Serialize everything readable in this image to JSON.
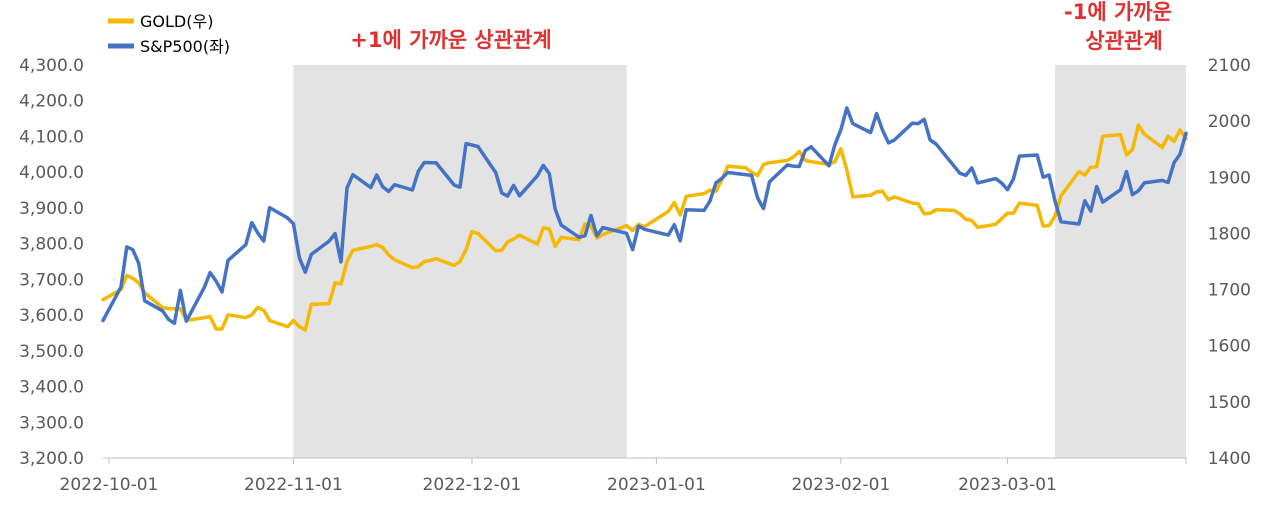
{
  "chart_data": {
    "type": "line",
    "x_ticks": [
      "2022-10-01",
      "2022-11-01",
      "2022-12-01",
      "2023-01-01",
      "2023-02-01",
      "2023-03-01"
    ],
    "y_left": {
      "ticks": [
        "4,300.0",
        "4,200.0",
        "4,100.0",
        "4,000.0",
        "3,900.0",
        "3,800.0",
        "3,700.0",
        "3,600.0",
        "3,500.0",
        "3,400.0",
        "3,300.0",
        "3,200.0"
      ],
      "range": [
        3200,
        4300
      ]
    },
    "y_right": {
      "ticks": [
        "2100",
        "2000",
        "1900",
        "1800",
        "1700",
        "1600",
        "1500",
        "1400"
      ],
      "range": [
        1400,
        2100
      ]
    },
    "legend": {
      "placement": "top-left"
    },
    "annotations": [
      {
        "text": "+1에 가까운 상관관계",
        "lines": [
          "+1에 가까운 상관관계"
        ],
        "shaded": [
          "2022-11-01",
          "2022-12-27"
        ]
      },
      {
        "text": "-1에 가까운 상관관계",
        "lines": [
          "-1에 가까운",
          "상관관계"
        ],
        "shaded": [
          "2023-03-09",
          "2023-03-31"
        ]
      }
    ],
    "series": [
      {
        "name": "GOLD(우)",
        "axis": "right",
        "color": "#f5b800",
        "points": [
          [
            "2022-09-30",
            1682
          ],
          [
            "2022-10-03",
            1700
          ],
          [
            "2022-10-04",
            1725
          ],
          [
            "2022-10-05",
            1720
          ],
          [
            "2022-10-06",
            1712
          ],
          [
            "2022-10-07",
            1694
          ],
          [
            "2022-10-10",
            1668
          ],
          [
            "2022-10-11",
            1666
          ],
          [
            "2022-10-12",
            1666
          ],
          [
            "2022-10-13",
            1666
          ],
          [
            "2022-10-14",
            1645
          ],
          [
            "2022-10-17",
            1650
          ],
          [
            "2022-10-18",
            1652
          ],
          [
            "2022-10-19",
            1630
          ],
          [
            "2022-10-20",
            1630
          ],
          [
            "2022-10-21",
            1655
          ],
          [
            "2022-10-24",
            1650
          ],
          [
            "2022-10-25",
            1655
          ],
          [
            "2022-10-26",
            1668
          ],
          [
            "2022-10-27",
            1663
          ],
          [
            "2022-10-28",
            1645
          ],
          [
            "2022-10-31",
            1634
          ],
          [
            "2022-11-01",
            1645
          ],
          [
            "2022-11-02",
            1634
          ],
          [
            "2022-11-03",
            1628
          ],
          [
            "2022-11-04",
            1674
          ],
          [
            "2022-11-07",
            1675
          ],
          [
            "2022-11-08",
            1712
          ],
          [
            "2022-11-09",
            1710
          ],
          [
            "2022-11-10",
            1750
          ],
          [
            "2022-11-11",
            1770
          ],
          [
            "2022-11-14",
            1777
          ],
          [
            "2022-11-15",
            1780
          ],
          [
            "2022-11-16",
            1775
          ],
          [
            "2022-11-17",
            1762
          ],
          [
            "2022-11-18",
            1753
          ],
          [
            "2022-11-21",
            1739
          ],
          [
            "2022-11-22",
            1741
          ],
          [
            "2022-11-23",
            1750
          ],
          [
            "2022-11-24",
            1752
          ],
          [
            "2022-11-25",
            1755
          ],
          [
            "2022-11-28",
            1743
          ],
          [
            "2022-11-29",
            1750
          ],
          [
            "2022-11-30",
            1771
          ],
          [
            "2022-12-01",
            1803
          ],
          [
            "2022-12-02",
            1800
          ],
          [
            "2022-12-05",
            1769
          ],
          [
            "2022-12-06",
            1770
          ],
          [
            "2022-12-07",
            1785
          ],
          [
            "2022-12-08",
            1790
          ],
          [
            "2022-12-09",
            1797
          ],
          [
            "2022-12-12",
            1781
          ],
          [
            "2022-12-13",
            1810
          ],
          [
            "2022-12-14",
            1808
          ],
          [
            "2022-12-15",
            1777
          ],
          [
            "2022-12-16",
            1793
          ],
          [
            "2022-12-19",
            1789
          ],
          [
            "2022-12-20",
            1817
          ],
          [
            "2022-12-21",
            1814
          ],
          [
            "2022-12-22",
            1792
          ],
          [
            "2022-12-23",
            1798
          ],
          [
            "2022-12-27",
            1814
          ],
          [
            "2022-12-28",
            1805
          ],
          [
            "2022-12-29",
            1816
          ],
          [
            "2022-12-30",
            1812
          ],
          [
            "2023-01-03",
            1839
          ],
          [
            "2023-01-04",
            1855
          ],
          [
            "2023-01-05",
            1833
          ],
          [
            "2023-01-06",
            1866
          ],
          [
            "2023-01-09",
            1871
          ],
          [
            "2023-01-10",
            1877
          ],
          [
            "2023-01-11",
            1875
          ],
          [
            "2023-01-12",
            1896
          ],
          [
            "2023-01-13",
            1920
          ],
          [
            "2023-01-16",
            1917
          ],
          [
            "2023-01-17",
            1909
          ],
          [
            "2023-01-18",
            1903
          ],
          [
            "2023-01-19",
            1923
          ],
          [
            "2023-01-20",
            1926
          ],
          [
            "2023-01-23",
            1930
          ],
          [
            "2023-01-24",
            1936
          ],
          [
            "2023-01-25",
            1946
          ],
          [
            "2023-01-26",
            1930
          ],
          [
            "2023-01-27",
            1928
          ],
          [
            "2023-01-30",
            1923
          ],
          [
            "2023-01-31",
            1928
          ],
          [
            "2023-02-01",
            1951
          ],
          [
            "2023-02-02",
            1913
          ],
          [
            "2023-02-03",
            1865
          ],
          [
            "2023-02-06",
            1868
          ],
          [
            "2023-02-07",
            1874
          ],
          [
            "2023-02-08",
            1875
          ],
          [
            "2023-02-09",
            1860
          ],
          [
            "2023-02-10",
            1865
          ],
          [
            "2023-02-13",
            1854
          ],
          [
            "2023-02-14",
            1853
          ],
          [
            "2023-02-15",
            1835
          ],
          [
            "2023-02-16",
            1836
          ],
          [
            "2023-02-17",
            1842
          ],
          [
            "2023-02-20",
            1841
          ],
          [
            "2023-02-21",
            1835
          ],
          [
            "2023-02-22",
            1825
          ],
          [
            "2023-02-23",
            1823
          ],
          [
            "2023-02-24",
            1811
          ],
          [
            "2023-02-27",
            1816
          ],
          [
            "2023-02-28",
            1826
          ],
          [
            "2023-03-01",
            1836
          ],
          [
            "2023-03-02",
            1836
          ],
          [
            "2023-03-03",
            1854
          ],
          [
            "2023-03-06",
            1850
          ],
          [
            "2023-03-07",
            1813
          ],
          [
            "2023-03-08",
            1814
          ],
          [
            "2023-03-09",
            1831
          ],
          [
            "2023-03-10",
            1867
          ],
          [
            "2023-03-13",
            1910
          ],
          [
            "2023-03-14",
            1904
          ],
          [
            "2023-03-15",
            1918
          ],
          [
            "2023-03-16",
            1919
          ],
          [
            "2023-03-17",
            1973
          ],
          [
            "2023-03-20",
            1976
          ],
          [
            "2023-03-21",
            1940
          ],
          [
            "2023-03-22",
            1949
          ],
          [
            "2023-03-23",
            1993
          ],
          [
            "2023-03-24",
            1977
          ],
          [
            "2023-03-27",
            1953
          ],
          [
            "2023-03-28",
            1973
          ],
          [
            "2023-03-29",
            1964
          ],
          [
            "2023-03-30",
            1984
          ],
          [
            "2023-03-31",
            1969
          ]
        ]
      },
      {
        "name": "S&P500(좌)",
        "axis": "left",
        "color": "#4472c4",
        "points": [
          [
            "2022-09-30",
            3585
          ],
          [
            "2022-10-03",
            3678
          ],
          [
            "2022-10-04",
            3791
          ],
          [
            "2022-10-05",
            3783
          ],
          [
            "2022-10-06",
            3745
          ],
          [
            "2022-10-07",
            3640
          ],
          [
            "2022-10-10",
            3612
          ],
          [
            "2022-10-11",
            3588
          ],
          [
            "2022-10-12",
            3577
          ],
          [
            "2022-10-13",
            3669
          ],
          [
            "2022-10-14",
            3583
          ],
          [
            "2022-10-17",
            3677
          ],
          [
            "2022-10-18",
            3719
          ],
          [
            "2022-10-19",
            3695
          ],
          [
            "2022-10-20",
            3665
          ],
          [
            "2022-10-21",
            3753
          ],
          [
            "2022-10-24",
            3797
          ],
          [
            "2022-10-25",
            3859
          ],
          [
            "2022-10-26",
            3830
          ],
          [
            "2022-10-27",
            3807
          ],
          [
            "2022-10-28",
            3901
          ],
          [
            "2022-10-31",
            3872
          ],
          [
            "2022-11-01",
            3856
          ],
          [
            "2022-11-02",
            3760
          ],
          [
            "2022-11-03",
            3720
          ],
          [
            "2022-11-04",
            3770
          ],
          [
            "2022-11-07",
            3807
          ],
          [
            "2022-11-08",
            3828
          ],
          [
            "2022-11-09",
            3749
          ],
          [
            "2022-11-10",
            3956
          ],
          [
            "2022-11-11",
            3993
          ],
          [
            "2022-11-14",
            3957
          ],
          [
            "2022-11-15",
            3992
          ],
          [
            "2022-11-16",
            3959
          ],
          [
            "2022-11-17",
            3946
          ],
          [
            "2022-11-18",
            3965
          ],
          [
            "2022-11-21",
            3950
          ],
          [
            "2022-11-22",
            4003
          ],
          [
            "2022-11-23",
            4027
          ],
          [
            "2022-11-25",
            4026
          ],
          [
            "2022-11-28",
            3964
          ],
          [
            "2022-11-29",
            3958
          ],
          [
            "2022-11-30",
            4080
          ],
          [
            "2022-12-01",
            4076
          ],
          [
            "2022-12-02",
            4072
          ],
          [
            "2022-12-05",
            3999
          ],
          [
            "2022-12-06",
            3942
          ],
          [
            "2022-12-07",
            3933
          ],
          [
            "2022-12-08",
            3963
          ],
          [
            "2022-12-09",
            3934
          ],
          [
            "2022-12-12",
            3990
          ],
          [
            "2022-12-13",
            4019
          ],
          [
            "2022-12-14",
            3996
          ],
          [
            "2022-12-15",
            3896
          ],
          [
            "2022-12-16",
            3852
          ],
          [
            "2022-12-19",
            3818
          ],
          [
            "2022-12-20",
            3822
          ],
          [
            "2022-12-21",
            3879
          ],
          [
            "2022-12-22",
            3822
          ],
          [
            "2022-12-23",
            3845
          ],
          [
            "2022-12-27",
            3829
          ],
          [
            "2022-12-28",
            3783
          ],
          [
            "2022-12-29",
            3849
          ],
          [
            "2022-12-30",
            3840
          ],
          [
            "2023-01-03",
            3824
          ],
          [
            "2023-01-04",
            3853
          ],
          [
            "2023-01-05",
            3808
          ],
          [
            "2023-01-06",
            3895
          ],
          [
            "2023-01-09",
            3893
          ],
          [
            "2023-01-10",
            3919
          ],
          [
            "2023-01-11",
            3970
          ],
          [
            "2023-01-12",
            3983
          ],
          [
            "2023-01-13",
            3999
          ],
          [
            "2023-01-17",
            3991
          ],
          [
            "2023-01-18",
            3928
          ],
          [
            "2023-01-19",
            3898
          ],
          [
            "2023-01-20",
            3973
          ],
          [
            "2023-01-23",
            4020
          ],
          [
            "2023-01-24",
            4017
          ],
          [
            "2023-01-25",
            4016
          ],
          [
            "2023-01-26",
            4060
          ],
          [
            "2023-01-27",
            4071
          ],
          [
            "2023-01-30",
            4018
          ],
          [
            "2023-01-31",
            4077
          ],
          [
            "2023-02-01",
            4119
          ],
          [
            "2023-02-02",
            4180
          ],
          [
            "2023-02-03",
            4136
          ],
          [
            "2023-02-06",
            4111
          ],
          [
            "2023-02-07",
            4164
          ],
          [
            "2023-02-08",
            4118
          ],
          [
            "2023-02-09",
            4082
          ],
          [
            "2023-02-10",
            4090
          ],
          [
            "2023-02-13",
            4137
          ],
          [
            "2023-02-14",
            4136
          ],
          [
            "2023-02-15",
            4148
          ],
          [
            "2023-02-16",
            4090
          ],
          [
            "2023-02-17",
            4079
          ],
          [
            "2023-02-21",
            3997
          ],
          [
            "2023-02-22",
            3991
          ],
          [
            "2023-02-23",
            4012
          ],
          [
            "2023-02-24",
            3970
          ],
          [
            "2023-02-27",
            3982
          ],
          [
            "2023-02-28",
            3970
          ],
          [
            "2023-03-01",
            3951
          ],
          [
            "2023-03-02",
            3981
          ],
          [
            "2023-03-03",
            4045
          ],
          [
            "2023-03-06",
            4048
          ],
          [
            "2023-03-07",
            3986
          ],
          [
            "2023-03-08",
            3992
          ],
          [
            "2023-03-09",
            3918
          ],
          [
            "2023-03-10",
            3861
          ],
          [
            "2023-03-13",
            3855
          ],
          [
            "2023-03-14",
            3920
          ],
          [
            "2023-03-15",
            3891
          ],
          [
            "2023-03-16",
            3960
          ],
          [
            "2023-03-17",
            3916
          ],
          [
            "2023-03-20",
            3951
          ],
          [
            "2023-03-21",
            4002
          ],
          [
            "2023-03-22",
            3937
          ],
          [
            "2023-03-23",
            3948
          ],
          [
            "2023-03-24",
            3970
          ],
          [
            "2023-03-27",
            3977
          ],
          [
            "2023-03-28",
            3971
          ],
          [
            "2023-03-29",
            4027
          ],
          [
            "2023-03-30",
            4050
          ],
          [
            "2023-03-31",
            4109
          ]
        ]
      }
    ]
  }
}
